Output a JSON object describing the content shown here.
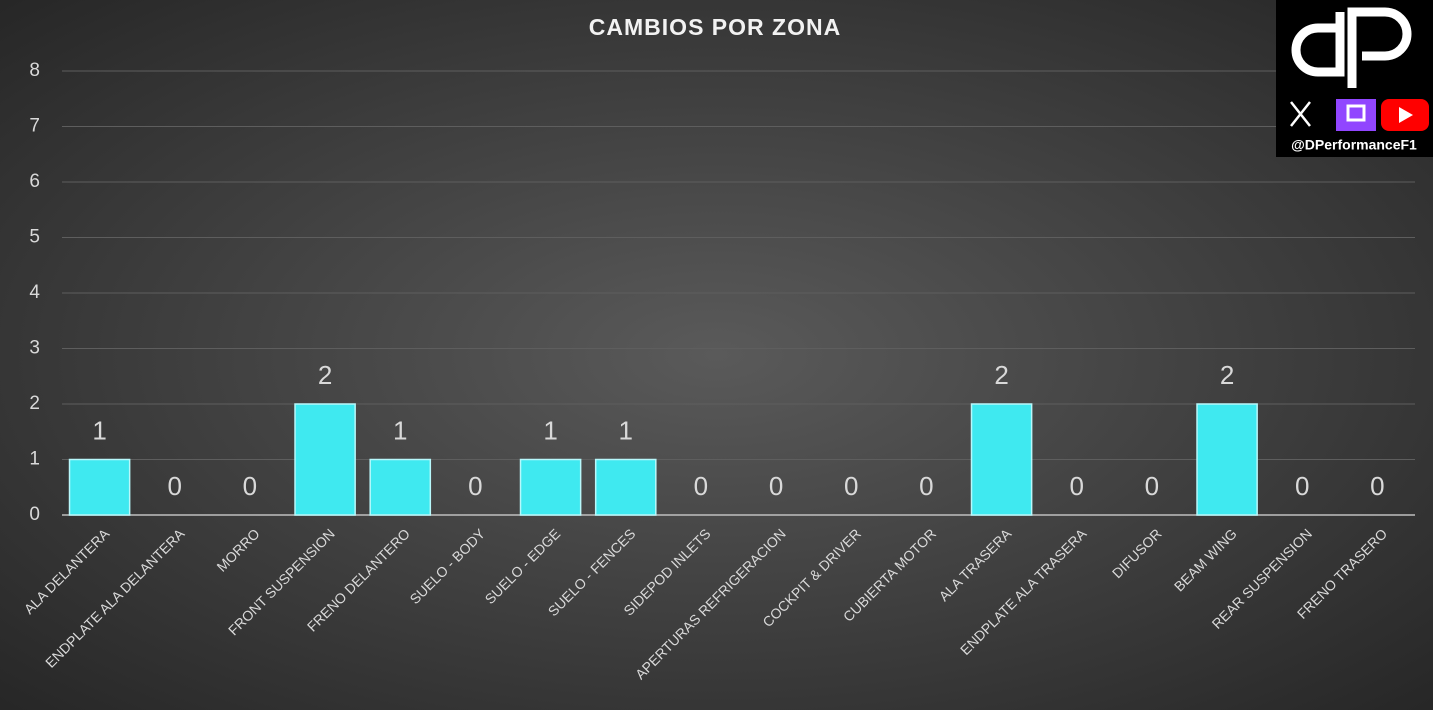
{
  "chart_data": {
    "type": "bar",
    "title": "CAMBIOS POR ZONA",
    "categories": [
      "ALA DELANTERA",
      "ENDPLATE ALA DELANTERA",
      "MORRO",
      "FRONT SUSPENSION",
      "FRENO DELANTERO",
      "SUELO - BODY",
      "SUELO  - EDGE",
      "SUELO - FENCES",
      "SIDEPOD INLETS",
      "APERTURAS REFRIGERACION",
      "COCKPIT & DRIVER",
      "CUBIERTA MOTOR",
      "ALA TRASERA",
      "ENDPLATE ALA TRASERA",
      "DIFUSOR",
      "BEAM WING",
      "REAR SUSPENSION",
      "FRENO TRASERO"
    ],
    "values": [
      1,
      0,
      0,
      2,
      1,
      0,
      1,
      1,
      0,
      0,
      0,
      0,
      2,
      0,
      0,
      2,
      0,
      0
    ],
    "color": "#3fe9f0",
    "ylim": [
      0,
      8
    ],
    "yticks": [
      0,
      1,
      2,
      3,
      4,
      5,
      6,
      7,
      8
    ],
    "grid": true
  },
  "watermark": {
    "handle": "@DPerformanceF1"
  }
}
